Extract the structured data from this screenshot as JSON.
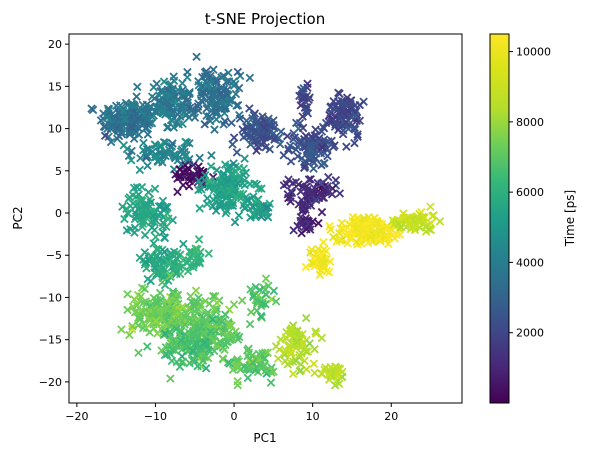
{
  "chart_data": {
    "type": "scatter",
    "title": "t-SNE Projection",
    "xlabel": "PC1",
    "ylabel": "PC2",
    "xlim": [
      -21,
      29
    ],
    "ylim": [
      -22.5,
      21.2
    ],
    "xticks": [
      -20,
      -10,
      0,
      10,
      20
    ],
    "yticks": [
      -20,
      -15,
      -10,
      -5,
      0,
      5,
      10,
      15,
      20
    ],
    "marker": "x",
    "grid": false,
    "colormap": "viridis",
    "colorbar": {
      "label": "Time [ps]",
      "range": [
        0,
        10500
      ],
      "ticks": [
        2000,
        4000,
        6000,
        8000,
        10000
      ]
    },
    "clusters": [
      {
        "x": -13.5,
        "y": 11.0,
        "sx": 3.0,
        "sy": 2.0,
        "time": 3600,
        "n": 160
      },
      {
        "x": -8.0,
        "y": 13.0,
        "sx": 2.5,
        "sy": 2.2,
        "time": 3800,
        "n": 120
      },
      {
        "x": -2.5,
        "y": 14.0,
        "sx": 2.5,
        "sy": 2.5,
        "time": 3500,
        "n": 120
      },
      {
        "x": -9.0,
        "y": 7.0,
        "sx": 3.5,
        "sy": 1.5,
        "time": 4300,
        "n": 70
      },
      {
        "x": 3.5,
        "y": 9.5,
        "sx": 2.5,
        "sy": 2.0,
        "time": 2400,
        "n": 90
      },
      {
        "x": 10.0,
        "y": 8.0,
        "sx": 2.5,
        "sy": 2.0,
        "time": 2300,
        "n": 90
      },
      {
        "x": 14.0,
        "y": 11.5,
        "sx": 2.0,
        "sy": 2.2,
        "time": 2100,
        "n": 90
      },
      {
        "x": 9.0,
        "y": 13.5,
        "sx": 0.8,
        "sy": 1.8,
        "time": 2000,
        "n": 25
      },
      {
        "x": -5.0,
        "y": 4.5,
        "sx": 1.8,
        "sy": 1.4,
        "time": 400,
        "n": 45
      },
      {
        "x": 10.0,
        "y": 2.5,
        "sx": 2.5,
        "sy": 1.5,
        "time": 1200,
        "n": 70
      },
      {
        "x": 9.0,
        "y": -1.0,
        "sx": 1.2,
        "sy": 1.5,
        "time": 1000,
        "n": 30
      },
      {
        "x": -1.0,
        "y": 3.0,
        "sx": 2.6,
        "sy": 2.3,
        "time": 5400,
        "n": 140
      },
      {
        "x": 3.0,
        "y": 0.5,
        "sx": 1.5,
        "sy": 1.0,
        "time": 5200,
        "n": 35
      },
      {
        "x": -11.0,
        "y": 0.0,
        "sx": 2.5,
        "sy": 2.0,
        "time": 5600,
        "n": 90
      },
      {
        "x": -9.0,
        "y": -6.0,
        "sx": 2.5,
        "sy": 1.8,
        "time": 5800,
        "n": 80
      },
      {
        "x": -5.0,
        "y": -5.0,
        "sx": 1.2,
        "sy": 1.2,
        "time": 6000,
        "n": 25
      },
      {
        "x": 17.0,
        "y": -2.0,
        "sx": 3.5,
        "sy": 1.4,
        "time": 10200,
        "n": 150
      },
      {
        "x": 11.0,
        "y": -5.5,
        "sx": 1.2,
        "sy": 1.3,
        "time": 10300,
        "n": 40
      },
      {
        "x": 23.0,
        "y": -1.0,
        "sx": 2.5,
        "sy": 1.0,
        "time": 8900,
        "n": 60
      },
      {
        "x": -9.0,
        "y": -12.0,
        "sx": 3.5,
        "sy": 2.5,
        "time": 7300,
        "n": 180
      },
      {
        "x": -3.0,
        "y": -14.0,
        "sx": 3.5,
        "sy": 2.7,
        "time": 7100,
        "n": 170
      },
      {
        "x": -6.0,
        "y": -16.0,
        "sx": 3.0,
        "sy": 2.0,
        "time": 6600,
        "n": 80
      },
      {
        "x": 2.0,
        "y": -18.0,
        "sx": 2.5,
        "sy": 1.5,
        "time": 7000,
        "n": 60
      },
      {
        "x": 8.0,
        "y": -15.5,
        "sx": 2.2,
        "sy": 2.0,
        "time": 8400,
        "n": 70
      },
      {
        "x": 12.5,
        "y": -19.0,
        "sx": 1.5,
        "sy": 0.9,
        "time": 8500,
        "n": 30
      },
      {
        "x": 3.0,
        "y": -10.0,
        "sx": 1.5,
        "sy": 1.5,
        "time": 7000,
        "n": 30
      }
    ]
  }
}
